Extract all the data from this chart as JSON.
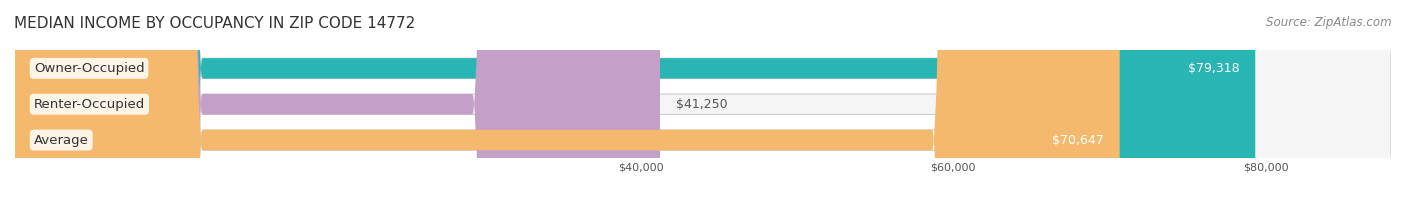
{
  "title": "MEDIAN INCOME BY OCCUPANCY IN ZIP CODE 14772",
  "source": "Source: ZipAtlas.com",
  "categories": [
    "Owner-Occupied",
    "Renter-Occupied",
    "Average"
  ],
  "values": [
    79318,
    41250,
    70647
  ],
  "bar_colors": [
    "#2ab5b5",
    "#c4a0c8",
    "#f5b96e"
  ],
  "bar_bg_color": "#f0f0f0",
  "value_labels": [
    "$79,318",
    "$41,250",
    "$70,647"
  ],
  "xlim": [
    0,
    88000
  ],
  "xticks": [
    40000,
    60000,
    80000
  ],
  "xtick_labels": [
    "$40,000",
    "$60,000",
    "$80,000"
  ],
  "background_color": "#ffffff",
  "bar_height": 0.55,
  "title_fontsize": 11,
  "label_fontsize": 9.5,
  "value_fontsize": 9,
  "source_fontsize": 8.5
}
